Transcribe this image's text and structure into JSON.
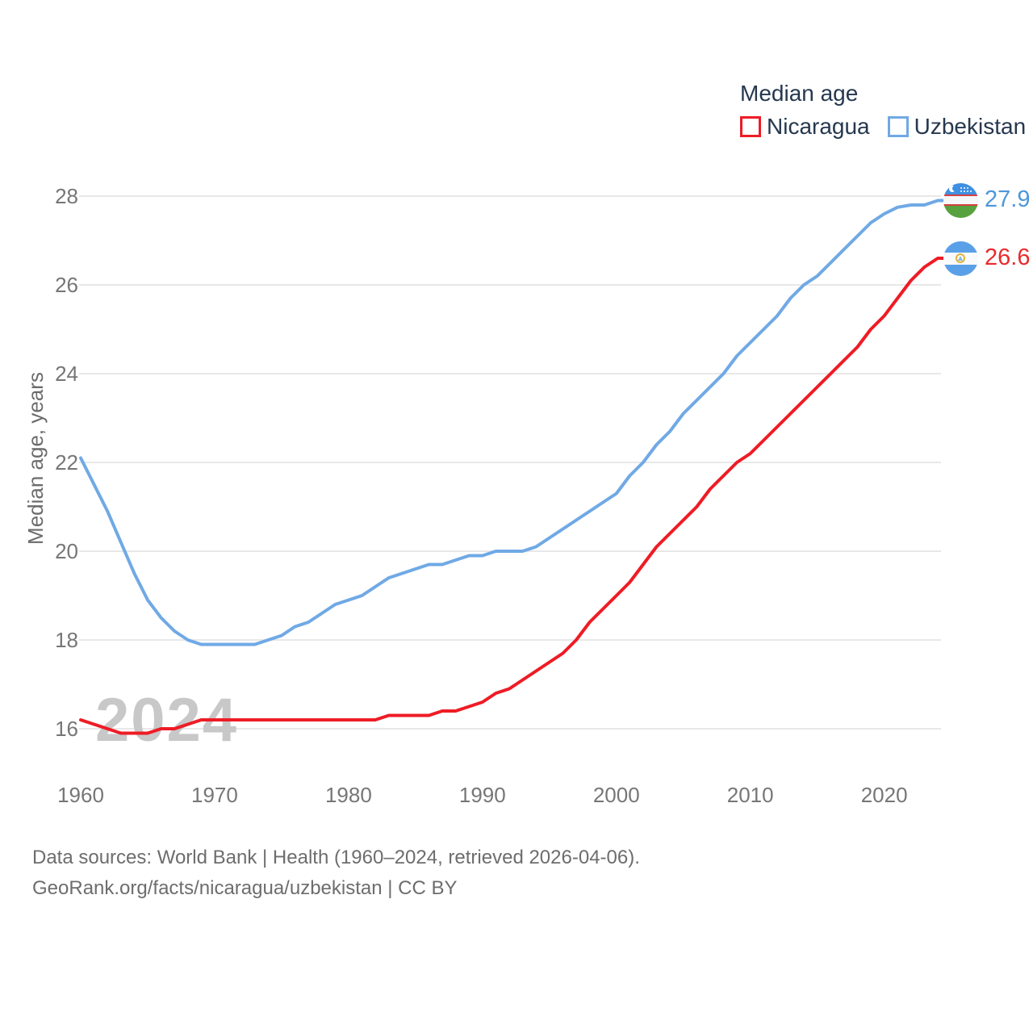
{
  "legend": {
    "title": "Median age",
    "items": [
      {
        "label": "Nicaragua",
        "color": "#ee1c25"
      },
      {
        "label": "Uzbekistan",
        "color": "#70a9e5"
      }
    ]
  },
  "y_axis": {
    "title": "Median age, years",
    "ticks": [
      28,
      26,
      24,
      22,
      20,
      18,
      16
    ]
  },
  "x_axis": {
    "ticks": [
      "1960",
      "1970",
      "1980",
      "1990",
      "2000",
      "2010",
      "2020"
    ]
  },
  "end_labels": [
    {
      "country": "Uzbekistan",
      "value": "27.9",
      "color": "#4d97da"
    },
    {
      "country": "Nicaragua",
      "value": "26.6",
      "color": "#ea2a2d"
    }
  ],
  "watermark": "2024",
  "footer": {
    "line1": "Data sources: World Bank | Health (1960–2024, retrieved 2026-04-06).",
    "line2": "GeoRank.org/facts/nicaragua/uzbekistan | CC BY"
  },
  "chart_data": {
    "type": "line",
    "title": "Median age",
    "xlabel": "",
    "ylabel": "Median age, years",
    "x_range": [
      1960,
      2024
    ],
    "ylim": [
      15.5,
      28.5
    ],
    "grid": "horizontal",
    "legend_position": "top-right",
    "years": [
      1960,
      1961,
      1962,
      1963,
      1964,
      1965,
      1966,
      1967,
      1968,
      1969,
      1970,
      1971,
      1972,
      1973,
      1974,
      1975,
      1976,
      1977,
      1978,
      1979,
      1980,
      1981,
      1982,
      1983,
      1984,
      1985,
      1986,
      1987,
      1988,
      1989,
      1990,
      1991,
      1992,
      1993,
      1994,
      1995,
      1996,
      1997,
      1998,
      1999,
      2000,
      2001,
      2002,
      2003,
      2004,
      2005,
      2006,
      2007,
      2008,
      2009,
      2010,
      2011,
      2012,
      2013,
      2014,
      2015,
      2016,
      2017,
      2018,
      2019,
      2020,
      2021,
      2022,
      2023,
      2024
    ],
    "series": [
      {
        "name": "Nicaragua",
        "color": "#ee1c25",
        "end_value": 26.6,
        "values": [
          16.2,
          16.1,
          16.0,
          15.9,
          15.9,
          15.9,
          16.0,
          16.0,
          16.1,
          16.2,
          16.2,
          16.2,
          16.2,
          16.2,
          16.2,
          16.2,
          16.2,
          16.2,
          16.2,
          16.2,
          16.2,
          16.2,
          16.2,
          16.3,
          16.3,
          16.3,
          16.3,
          16.4,
          16.4,
          16.5,
          16.6,
          16.8,
          16.9,
          17.1,
          17.3,
          17.5,
          17.7,
          18.0,
          18.4,
          18.7,
          19.0,
          19.3,
          19.7,
          20.1,
          20.4,
          20.7,
          21.0,
          21.4,
          21.7,
          22.0,
          22.2,
          22.5,
          22.8,
          23.1,
          23.4,
          23.7,
          24.0,
          24.3,
          24.6,
          25.0,
          25.3,
          25.7,
          26.1,
          26.4,
          26.6
        ]
      },
      {
        "name": "Uzbekistan",
        "color": "#70a9e5",
        "end_value": 27.9,
        "values": [
          22.1,
          21.5,
          20.9,
          20.2,
          19.5,
          18.9,
          18.5,
          18.2,
          18.0,
          17.9,
          17.9,
          17.9,
          17.9,
          17.9,
          18.0,
          18.1,
          18.3,
          18.4,
          18.6,
          18.8,
          18.9,
          19.0,
          19.2,
          19.4,
          19.5,
          19.6,
          19.7,
          19.7,
          19.8,
          19.9,
          19.9,
          20.0,
          20.0,
          20.0,
          20.1,
          20.3,
          20.5,
          20.7,
          20.9,
          21.1,
          21.3,
          21.7,
          22.0,
          22.4,
          22.7,
          23.1,
          23.4,
          23.7,
          24.0,
          24.4,
          24.7,
          25.0,
          25.3,
          25.7,
          26.0,
          26.2,
          26.5,
          26.8,
          27.1,
          27.4,
          27.6,
          27.75,
          27.8,
          27.8,
          27.9
        ]
      }
    ]
  }
}
